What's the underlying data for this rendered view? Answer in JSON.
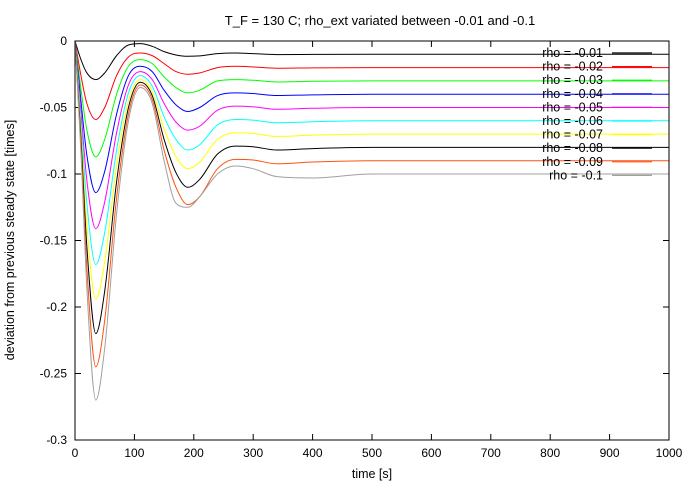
{
  "chart_data": {
    "type": "line",
    "title": "T_F = 130 C; rho_ext variated between -0.01 and -0.1",
    "xlabel": "time [s]",
    "ylabel": "deviation from previous steady state [times]",
    "xlim": [
      0,
      1000
    ],
    "ylim": [
      -0.3,
      0
    ],
    "x_ticks": [
      "0",
      "100",
      "200",
      "300",
      "400",
      "500",
      "600",
      "700",
      "800",
      "900",
      "1000"
    ],
    "y_ticks": [
      "0",
      "-0.05",
      "-0.1",
      "-0.15",
      "-0.2",
      "-0.25",
      "-0.3"
    ],
    "grid": false,
    "legend_position": "top-right",
    "series": [
      {
        "name": "rho = -0.01",
        "color": "#000000",
        "end": 975,
        "x": [
          0,
          10,
          20,
          35,
          50,
          70,
          90,
          110,
          130,
          150,
          170,
          190,
          210,
          240,
          270,
          300,
          340,
          400,
          500,
          700,
          1000
        ],
        "y": [
          0,
          -0.014,
          -0.024,
          -0.029,
          -0.024,
          -0.011,
          -0.003,
          -0.002,
          -0.004,
          -0.008,
          -0.0105,
          -0.0115,
          -0.0112,
          -0.0095,
          -0.009,
          -0.0095,
          -0.0102,
          -0.0101,
          -0.01,
          -0.01,
          -0.01
        ]
      },
      {
        "name": "rho = -0.02",
        "color": "#ff0000",
        "end": 975,
        "x": [
          0,
          10,
          20,
          35,
          50,
          70,
          90,
          110,
          130,
          150,
          170,
          190,
          210,
          240,
          270,
          300,
          340,
          400,
          500,
          700,
          1000
        ],
        "y": [
          0,
          -0.026,
          -0.047,
          -0.059,
          -0.05,
          -0.026,
          -0.012,
          -0.009,
          -0.011,
          -0.017,
          -0.023,
          -0.025,
          -0.024,
          -0.02,
          -0.019,
          -0.0195,
          -0.0205,
          -0.0202,
          -0.02,
          -0.02,
          -0.02
        ]
      },
      {
        "name": "rho = -0.03",
        "color": "#00ff00",
        "end": 975,
        "x": [
          0,
          10,
          20,
          35,
          50,
          70,
          90,
          110,
          130,
          150,
          170,
          190,
          210,
          240,
          270,
          300,
          340,
          400,
          500,
          700,
          1000
        ],
        "y": [
          0,
          -0.036,
          -0.067,
          -0.087,
          -0.074,
          -0.04,
          -0.019,
          -0.014,
          -0.017,
          -0.027,
          -0.035,
          -0.039,
          -0.037,
          -0.03,
          -0.029,
          -0.0295,
          -0.0308,
          -0.0303,
          -0.03,
          -0.03,
          -0.03
        ]
      },
      {
        "name": "rho = -0.04",
        "color": "#0000ff",
        "end": 975,
        "x": [
          0,
          10,
          20,
          35,
          50,
          70,
          90,
          110,
          130,
          150,
          170,
          190,
          210,
          240,
          270,
          300,
          340,
          400,
          500,
          700,
          1000
        ],
        "y": [
          0,
          -0.045,
          -0.086,
          -0.114,
          -0.098,
          -0.055,
          -0.026,
          -0.019,
          -0.023,
          -0.037,
          -0.048,
          -0.053,
          -0.05,
          -0.041,
          -0.039,
          -0.0395,
          -0.041,
          -0.0405,
          -0.04,
          -0.04,
          -0.04
        ]
      },
      {
        "name": "rho = -0.05",
        "color": "#ff00ff",
        "end": 975,
        "x": [
          0,
          10,
          20,
          35,
          50,
          70,
          90,
          110,
          130,
          150,
          170,
          190,
          210,
          240,
          270,
          300,
          340,
          400,
          500,
          700,
          1000
        ],
        "y": [
          0,
          -0.053,
          -0.105,
          -0.141,
          -0.121,
          -0.069,
          -0.033,
          -0.023,
          -0.029,
          -0.047,
          -0.061,
          -0.067,
          -0.064,
          -0.052,
          -0.049,
          -0.0495,
          -0.0513,
          -0.0506,
          -0.05,
          -0.05,
          -0.05
        ]
      },
      {
        "name": "rho = -0.06",
        "color": "#00ffff",
        "end": 975,
        "x": [
          0,
          10,
          20,
          35,
          50,
          70,
          90,
          110,
          130,
          150,
          170,
          190,
          210,
          240,
          270,
          300,
          340,
          400,
          500,
          700,
          1000
        ],
        "y": [
          0,
          -0.06,
          -0.122,
          -0.168,
          -0.144,
          -0.082,
          -0.039,
          -0.026,
          -0.034,
          -0.057,
          -0.074,
          -0.082,
          -0.078,
          -0.063,
          -0.059,
          -0.0595,
          -0.0615,
          -0.0607,
          -0.06,
          -0.06,
          -0.06
        ]
      },
      {
        "name": "rho = -0.07",
        "color": "#ffff00",
        "end": 975,
        "x": [
          0,
          10,
          20,
          35,
          50,
          70,
          90,
          110,
          130,
          150,
          170,
          190,
          210,
          240,
          270,
          300,
          340,
          400,
          500,
          700,
          1000
        ],
        "y": [
          0,
          -0.067,
          -0.139,
          -0.194,
          -0.166,
          -0.094,
          -0.045,
          -0.029,
          -0.038,
          -0.066,
          -0.087,
          -0.096,
          -0.091,
          -0.074,
          -0.069,
          -0.0695,
          -0.0718,
          -0.0708,
          -0.07,
          -0.07,
          -0.07
        ]
      },
      {
        "name": "rho = -0.08",
        "color": "#000000",
        "end": 975,
        "x": [
          0,
          10,
          20,
          35,
          50,
          70,
          90,
          110,
          130,
          150,
          170,
          190,
          210,
          240,
          270,
          300,
          340,
          400,
          500,
          700,
          1000
        ],
        "y": [
          0,
          -0.073,
          -0.155,
          -0.22,
          -0.188,
          -0.106,
          -0.05,
          -0.031,
          -0.041,
          -0.074,
          -0.099,
          -0.11,
          -0.104,
          -0.085,
          -0.079,
          -0.0795,
          -0.082,
          -0.0809,
          -0.08,
          -0.08,
          -0.08
        ]
      },
      {
        "name": "rho = -0.09",
        "color": "#ff5010",
        "end": 975,
        "x": [
          0,
          10,
          20,
          35,
          50,
          70,
          90,
          110,
          130,
          150,
          170,
          190,
          210,
          240,
          270,
          300,
          340,
          400,
          500,
          700,
          1000
        ],
        "y": [
          0,
          -0.079,
          -0.171,
          -0.245,
          -0.21,
          -0.118,
          -0.055,
          -0.033,
          -0.044,
          -0.082,
          -0.11,
          -0.123,
          -0.117,
          -0.096,
          -0.089,
          -0.0895,
          -0.0923,
          -0.091,
          -0.09,
          -0.09,
          -0.09
        ]
      },
      {
        "name": "rho = -0.1",
        "color": "#a0a0a0",
        "end": 975,
        "x": [
          0,
          10,
          20,
          35,
          50,
          70,
          90,
          110,
          130,
          150,
          170,
          190,
          210,
          240,
          270,
          300,
          340,
          400,
          500,
          700,
          1000
        ],
        "y": [
          0,
          -0.084,
          -0.186,
          -0.27,
          -0.231,
          -0.13,
          -0.06,
          -0.035,
          -0.047,
          -0.09,
          -0.122,
          -0.125,
          -0.117,
          -0.1,
          -0.094,
          -0.096,
          -0.102,
          -0.103,
          -0.1,
          -0.1,
          -0.1
        ]
      }
    ]
  }
}
